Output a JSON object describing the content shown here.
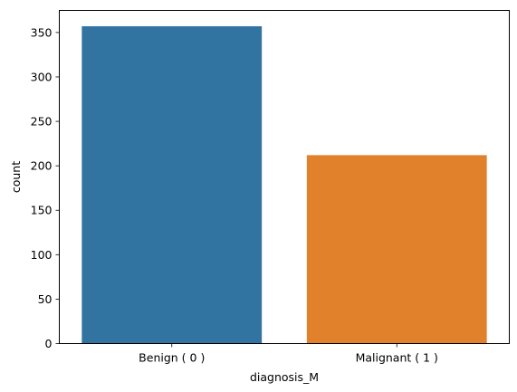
{
  "chart_data": {
    "type": "bar",
    "title": "",
    "xlabel": "diagnosis_M",
    "ylabel": "count",
    "categories": [
      "Benign ( 0 )",
      "Malignant ( 1 )"
    ],
    "values": [
      357,
      212
    ],
    "colors": [
      "#3274a1",
      "#e1812c"
    ],
    "ylim": [
      0,
      374.85
    ],
    "yticks": [
      0,
      50,
      100,
      150,
      200,
      250,
      300,
      350
    ],
    "grid": false,
    "legend": "none"
  }
}
